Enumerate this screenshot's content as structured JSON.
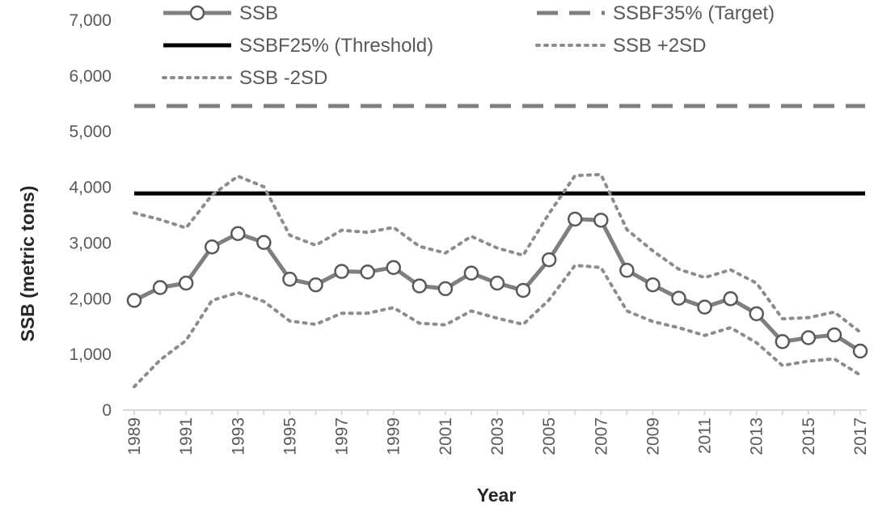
{
  "chart_data": {
    "type": "line",
    "title": "",
    "xlabel": "Year",
    "ylabel": "SSB (metric tons)",
    "ylim": [
      0,
      7000
    ],
    "yticks": [
      0,
      1000,
      2000,
      3000,
      4000,
      5000,
      6000,
      7000
    ],
    "ytick_labels": [
      "0",
      "1,000",
      "2,000",
      "3,000",
      "4,000",
      "5,000",
      "6,000",
      "7,000"
    ],
    "xlim": [
      1989,
      2017
    ],
    "xticks": [
      1989,
      1991,
      1993,
      1995,
      1997,
      1999,
      2001,
      2003,
      2005,
      2007,
      2009,
      2011,
      2013,
      2015,
      2017
    ],
    "xtick_labels": [
      "1989",
      "1991",
      "1993",
      "1995",
      "1997",
      "1999",
      "2001",
      "2003",
      "2005",
      "2007",
      "2009",
      "2011",
      "2013",
      "2015",
      "2017"
    ],
    "x": [
      1989,
      1990,
      1991,
      1992,
      1993,
      1994,
      1995,
      1996,
      1997,
      1998,
      1999,
      2000,
      2001,
      2002,
      2003,
      2004,
      2005,
      2006,
      2007,
      2008,
      2009,
      2010,
      2011,
      2012,
      2013,
      2014,
      2015,
      2016,
      2017
    ],
    "grid": false,
    "legend_position": "top",
    "series": [
      {
        "name": "SSB",
        "style": "solid-markers",
        "color": "#7f7f7f",
        "values": [
          1970,
          2200,
          2280,
          2930,
          3170,
          3010,
          2350,
          2250,
          2490,
          2480,
          2560,
          2230,
          2180,
          2460,
          2280,
          2150,
          2700,
          3430,
          3410,
          2510,
          2250,
          2010,
          1850,
          2000,
          1730,
          1230,
          1300,
          1350,
          1060
        ]
      },
      {
        "name": "SSBF35% (Target)",
        "style": "dashed",
        "color": "#7f7f7f",
        "values": [
          5460,
          5460,
          5460,
          5460,
          5460,
          5460,
          5460,
          5460,
          5460,
          5460,
          5460,
          5460,
          5460,
          5460,
          5460,
          5460,
          5460,
          5460,
          5460,
          5460,
          5460,
          5460,
          5460,
          5460,
          5460,
          5460,
          5460,
          5460,
          5460
        ]
      },
      {
        "name": "SSBF25% (Threshold)",
        "style": "solid",
        "color": "#000000",
        "values": [
          3890,
          3890,
          3890,
          3890,
          3890,
          3890,
          3890,
          3890,
          3890,
          3890,
          3890,
          3890,
          3890,
          3890,
          3890,
          3890,
          3890,
          3890,
          3890,
          3890,
          3890,
          3890,
          3890,
          3890,
          3890,
          3890,
          3890,
          3890,
          3890
        ]
      },
      {
        "name": "SSB +2SD",
        "style": "dotted",
        "color": "#8c8c8c",
        "values": [
          3540,
          3420,
          3270,
          3860,
          4200,
          4010,
          3140,
          2960,
          3230,
          3190,
          3280,
          2940,
          2820,
          3120,
          2910,
          2780,
          3530,
          4210,
          4230,
          3240,
          2860,
          2530,
          2380,
          2520,
          2280,
          1640,
          1660,
          1760,
          1400
        ]
      },
      {
        "name": "SSB -2SD",
        "style": "dotted",
        "color": "#8c8c8c",
        "values": [
          420,
          900,
          1250,
          1970,
          2110,
          1950,
          1600,
          1540,
          1740,
          1740,
          1840,
          1560,
          1530,
          1780,
          1650,
          1540,
          1980,
          2600,
          2560,
          1780,
          1590,
          1480,
          1340,
          1480,
          1210,
          800,
          880,
          920,
          630
        ]
      }
    ]
  }
}
